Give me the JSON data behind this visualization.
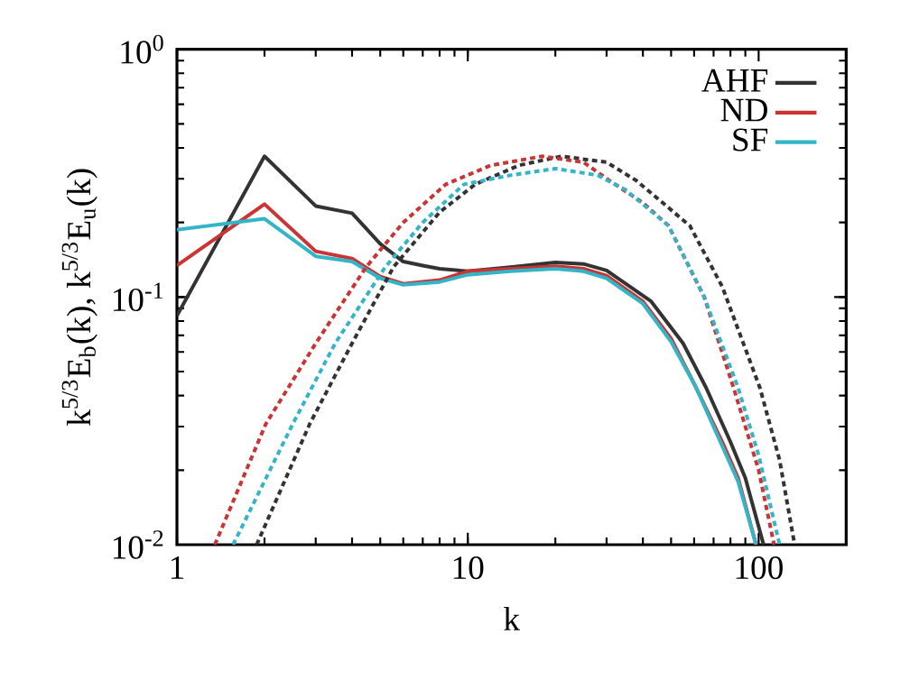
{
  "chart_data": {
    "type": "line",
    "xlabel": "k",
    "ylabel": "k$^{5/3}$E$_{b}$(k), k$^{5/3}$E$_{u}$(k)",
    "log": "xy",
    "legend": "top right",
    "xlim": [
      1,
      200
    ],
    "ylim": [
      0.01,
      1
    ],
    "xticks": [
      1,
      10,
      100
    ],
    "yticks": [
      {
        "value": 0.01,
        "label": "10$^{-2}$"
      },
      {
        "value": 0.1,
        "label": "10$^{-1}$"
      },
      {
        "value": 1,
        "label": "10$^{0}$"
      }
    ],
    "series": [
      {
        "name": "AHF",
        "color": "#333333",
        "line_style": "solid",
        "x": [
          1,
          2,
          3,
          4,
          5,
          6,
          7,
          8,
          10,
          14,
          20,
          25,
          30,
          42.7,
          55,
          66,
          80,
          90,
          104
        ],
        "values": [
          0.084,
          0.37,
          0.233,
          0.218,
          0.164,
          0.139,
          0.134,
          0.13,
          0.127,
          0.132,
          0.138,
          0.136,
          0.128,
          0.096,
          0.065,
          0.043,
          0.026,
          0.0186,
          0.01
        ]
      },
      {
        "name": "ND",
        "color": "#cc3333",
        "line_style": "solid",
        "x": [
          1,
          2,
          3,
          4,
          5,
          6,
          8,
          10,
          14,
          20,
          25,
          30,
          40,
          50,
          61,
          75,
          85,
          98
        ],
        "values": [
          0.134,
          0.237,
          0.153,
          0.143,
          0.121,
          0.113,
          0.117,
          0.127,
          0.13,
          0.133,
          0.13,
          0.122,
          0.096,
          0.068,
          0.043,
          0.026,
          0.0186,
          0.01
        ]
      },
      {
        "name": "SF",
        "color": "#33b5c8",
        "line_style": "solid",
        "x": [
          1,
          2,
          3,
          4,
          5,
          6,
          8,
          10,
          14,
          20,
          25,
          30,
          40,
          50,
          61,
          75,
          85,
          98
        ],
        "values": [
          0.187,
          0.207,
          0.146,
          0.139,
          0.119,
          0.112,
          0.115,
          0.123,
          0.127,
          0.13,
          0.127,
          0.119,
          0.094,
          0.066,
          0.043,
          0.025,
          0.018,
          0.01
        ]
      },
      {
        "color": "#333333",
        "line_style": "dotted",
        "x": [
          1.88,
          2.86,
          4,
          5.55,
          8,
          10.6,
          15,
          21,
          30,
          38,
          58,
          75,
          101,
          118,
          133
        ],
        "values": [
          0.01,
          0.0307,
          0.065,
          0.132,
          0.22,
          0.285,
          0.34,
          0.37,
          0.35,
          0.295,
          0.194,
          0.11,
          0.043,
          0.022,
          0.01
        ]
      },
      {
        "color": "#cc3333",
        "line_style": "dotted",
        "x": [
          1.35,
          2.02,
          3,
          4.47,
          6,
          8.4,
          12,
          18,
          25,
          30.7,
          40,
          49,
          65,
          82,
          100,
          113
        ],
        "values": [
          0.01,
          0.0307,
          0.065,
          0.132,
          0.2,
          0.285,
          0.34,
          0.37,
          0.35,
          0.295,
          0.24,
          0.194,
          0.1,
          0.043,
          0.02,
          0.01
        ]
      },
      {
        "color": "#33b5c8",
        "line_style": "dotted",
        "x": [
          1.56,
          2.5,
          3.5,
          5.2,
          7,
          9.7,
          14,
          20,
          28,
          35,
          49,
          65,
          85,
          100,
          118
        ],
        "values": [
          0.01,
          0.0307,
          0.065,
          0.132,
          0.2,
          0.285,
          0.31,
          0.33,
          0.31,
          0.27,
          0.194,
          0.1,
          0.043,
          0.023,
          0.01
        ]
      }
    ]
  }
}
